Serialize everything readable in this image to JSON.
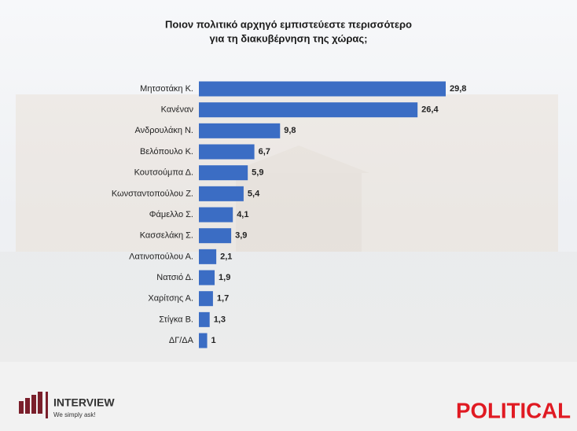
{
  "chart_data": {
    "type": "bar",
    "orientation": "horizontal",
    "title": [
      "Ποιον πολιτικό αρχηγό εμπιστεύεστε περισσότερο",
      "για τη διακυβέρνηση της χώρας;"
    ],
    "categories": [
      "Μητσοτάκη Κ.",
      "Κανέναν",
      "Ανδρουλάκη Ν.",
      "Βελόπουλο Κ.",
      "Κουτσούμπα Δ.",
      "Κωνσταντοπούλου Ζ.",
      "Φάμελλο Σ.",
      "Κασσελάκη Σ.",
      "Λατινοπούλου Α.",
      "Νατσιό Δ.",
      "Χαρίτσης Α.",
      "Στίγκα Β.",
      "ΔΓ/ΔΑ"
    ],
    "values": [
      29.8,
      26.4,
      9.8,
      6.7,
      5.9,
      5.4,
      4.1,
      3.9,
      2.1,
      1.9,
      1.7,
      1.3,
      1
    ],
    "value_labels": [
      "29,8",
      "26,4",
      "9,8",
      "6,7",
      "5,9",
      "5,4",
      "4,1",
      "3,9",
      "2,1",
      "1,9",
      "1,7",
      "1,3",
      "1"
    ],
    "color": "#3b6dc4"
  },
  "branding": {
    "pollster": "INTERVIEW",
    "slogan": "We simply ask!",
    "outlet": "POLITICAL"
  }
}
